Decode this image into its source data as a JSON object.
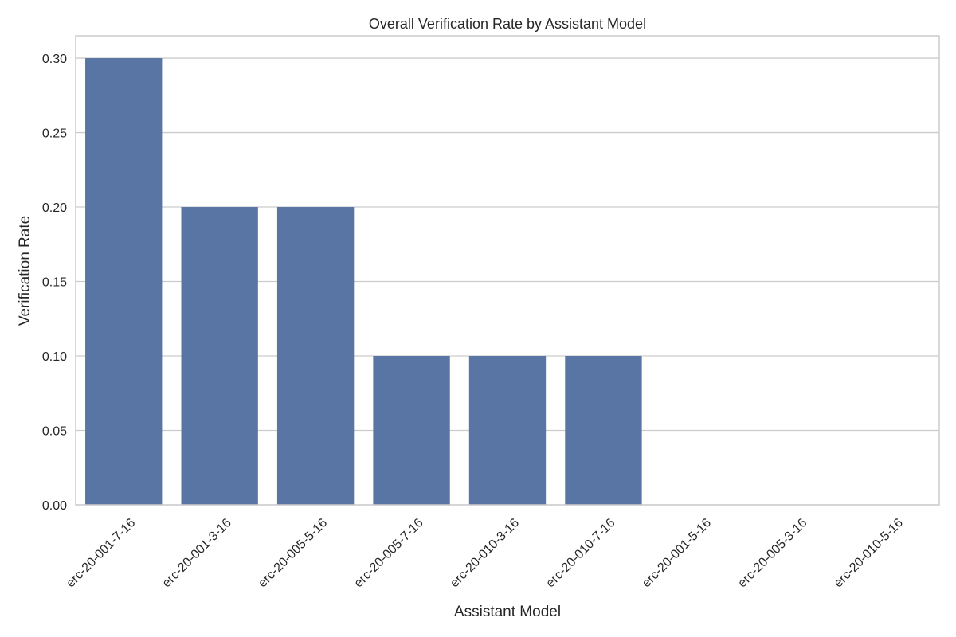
{
  "chart_data": {
    "type": "bar",
    "title": "Overall Verification Rate by Assistant Model",
    "xlabel": "Assistant Model",
    "ylabel": "Verification Rate",
    "categories": [
      "erc-20-001-7-16",
      "erc-20-001-3-16",
      "erc-20-005-5-16",
      "erc-20-005-7-16",
      "erc-20-010-3-16",
      "erc-20-010-7-16",
      "erc-20-001-5-16",
      "erc-20-005-3-16",
      "erc-20-010-5-16"
    ],
    "values": [
      0.3,
      0.2,
      0.2,
      0.1,
      0.1,
      0.1,
      0.0,
      0.0,
      0.0
    ],
    "ylim": [
      0,
      0.315
    ],
    "yticks": [
      "0.00",
      "0.05",
      "0.10",
      "0.15",
      "0.20",
      "0.25",
      "0.30"
    ],
    "grid": "horizontal",
    "bar_color": "#5875a4",
    "grid_color": "#cccccc",
    "spine_color": "#cccccc"
  }
}
